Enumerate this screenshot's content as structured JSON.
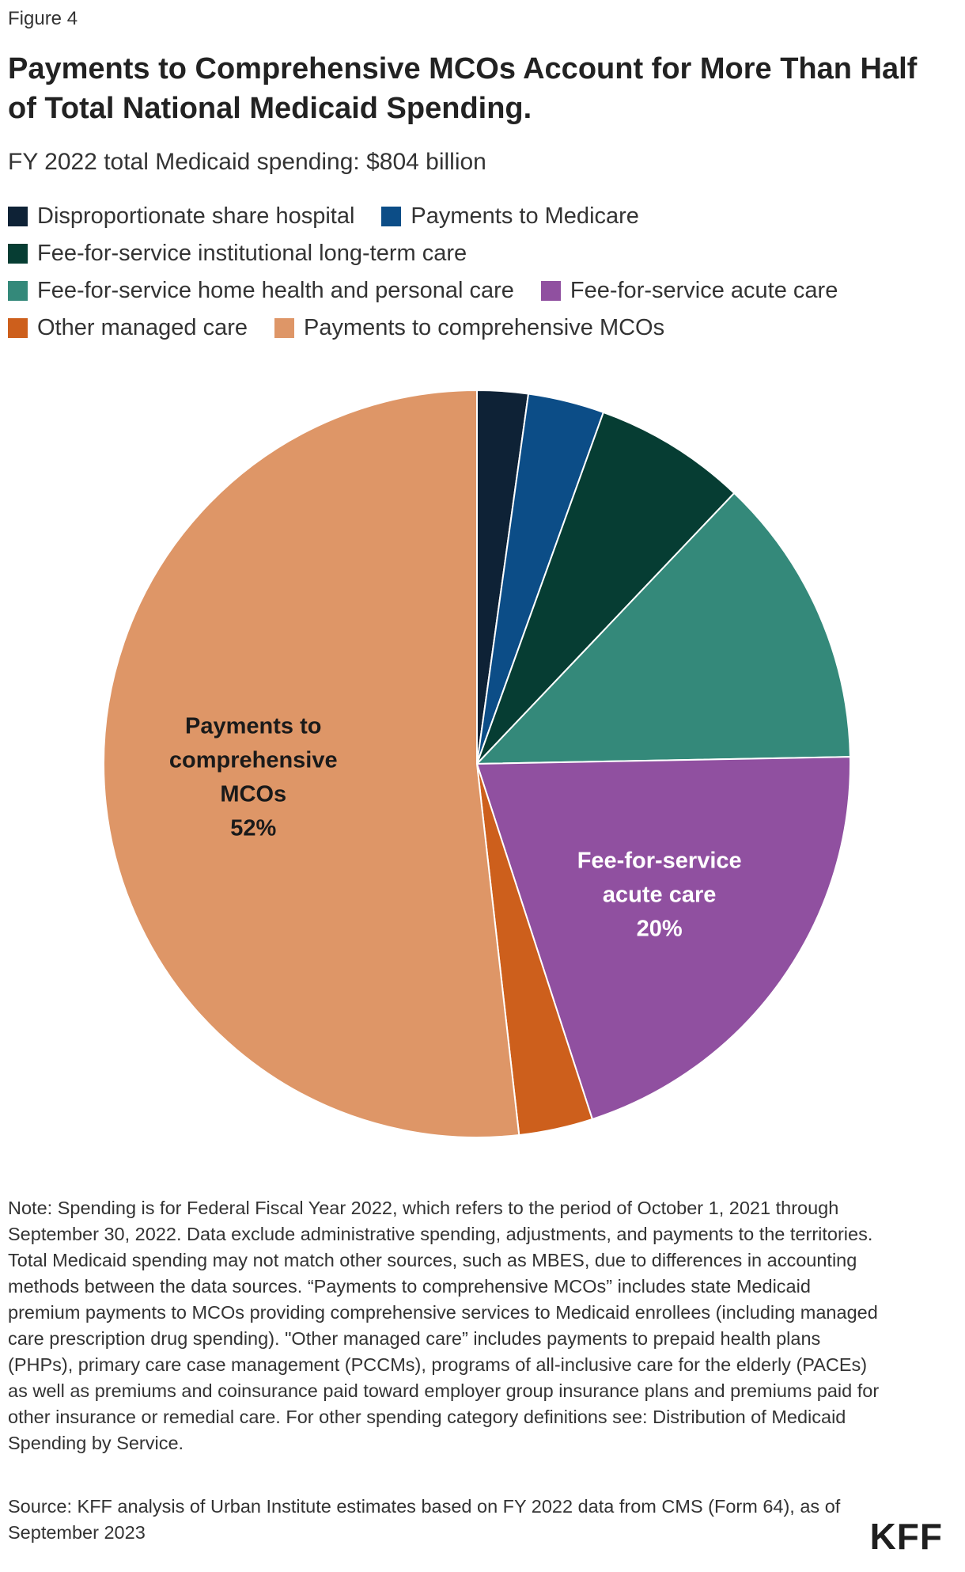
{
  "figure_label": "Figure 4",
  "title": "Payments to Comprehensive MCOs Account for More Than Half of Total National Medicaid Spending.",
  "subtitle": "FY 2022 total Medicaid spending: $804 billion",
  "colors": {
    "dsh": "#0e2236",
    "medicare": "#0c4d87",
    "ltc": "#063d33",
    "home_health": "#34897a",
    "acute": "#9050a0",
    "other_mc": "#cd5f1c",
    "mco": "#de9667"
  },
  "legend": {
    "rows": [
      [
        {
          "label": "Disproportionate share hospital",
          "color": "#0e2236"
        },
        {
          "label": "Payments to Medicare",
          "color": "#0c4d87"
        }
      ],
      [
        {
          "label": "Fee-for-service institutional long-term care",
          "color": "#063d33"
        }
      ],
      [
        {
          "label": "Fee-for-service home health and personal care",
          "color": "#34897a"
        },
        {
          "label": "Fee-for-service acute care",
          "color": "#9050a0"
        }
      ],
      [
        {
          "label": "Other managed care",
          "color": "#cd5f1c"
        },
        {
          "label": "Payments to comprehensive MCOs",
          "color": "#de9667"
        }
      ]
    ]
  },
  "chart_data": {
    "type": "pie",
    "slices": [
      {
        "name": "Disproportionate share hospital",
        "value": 2.2,
        "color": "#0e2236",
        "label_lines": [],
        "label_color": "#ffffff"
      },
      {
        "name": "Payments to Medicare",
        "value": 3.3,
        "color": "#0c4d87",
        "label_lines": [],
        "label_color": "#ffffff"
      },
      {
        "name": "Fee-for-service institutional long-term care",
        "value": 6.6,
        "color": "#063d33",
        "label_lines": [],
        "label_color": "#ffffff"
      },
      {
        "name": "Fee-for-service home health and personal care",
        "value": 12.6,
        "color": "#34897a",
        "label_lines": [],
        "label_color": "#ffffff"
      },
      {
        "name": "Fee-for-service acute care",
        "value": 20.3,
        "color": "#9050a0",
        "label_lines": [
          "Fee-for-service",
          "acute care",
          "20%"
        ],
        "label_color": "#ffffff"
      },
      {
        "name": "Other managed care",
        "value": 3.2,
        "color": "#cd5f1c",
        "label_lines": [],
        "label_color": "#ffffff"
      },
      {
        "name": "Payments to comprehensive MCOs",
        "value": 51.8,
        "color": "#de9667",
        "label_lines": [
          "Payments to",
          "comprehensive",
          "MCOs",
          "52%"
        ],
        "label_color": "#1a1a1a"
      }
    ],
    "start": "12 o'clock",
    "direction": "clockwise"
  },
  "note": "Note: Spending is for Federal Fiscal Year 2022, which refers to the period of October 1, 2021 through September 30, 2022. Data exclude administrative spending, adjustments, and payments to the territories. Total Medicaid spending may not match other sources, such as MBES, due to differences in accounting methods between the data sources. “Payments to comprehensive MCOs” includes state Medicaid premium payments to MCOs providing comprehensive services to Medicaid enrollees (including managed care prescription drug spending). \"Other managed care” includes payments to prepaid health plans (PHPs), primary care case management (PCCMs), programs of all-inclusive care for the elderly (PACEs) as well as premiums and coinsurance paid toward employer group insurance plans and premiums paid for other insurance or remedial care. For other spending category definitions see: Distribution of Medicaid Spending by Service.",
  "source": "Source: KFF analysis of Urban Institute estimates based on FY 2022 data from CMS (Form 64), as of September 2023",
  "logo": "KFF"
}
